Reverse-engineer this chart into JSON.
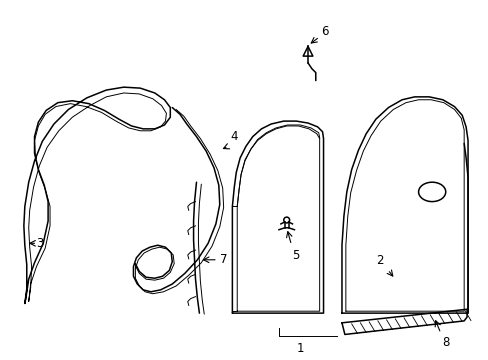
{
  "background_color": "#ffffff",
  "line_color": "#000000",
  "fig_width": 4.89,
  "fig_height": 3.6,
  "dpi": 100,
  "font_size": 8.5
}
